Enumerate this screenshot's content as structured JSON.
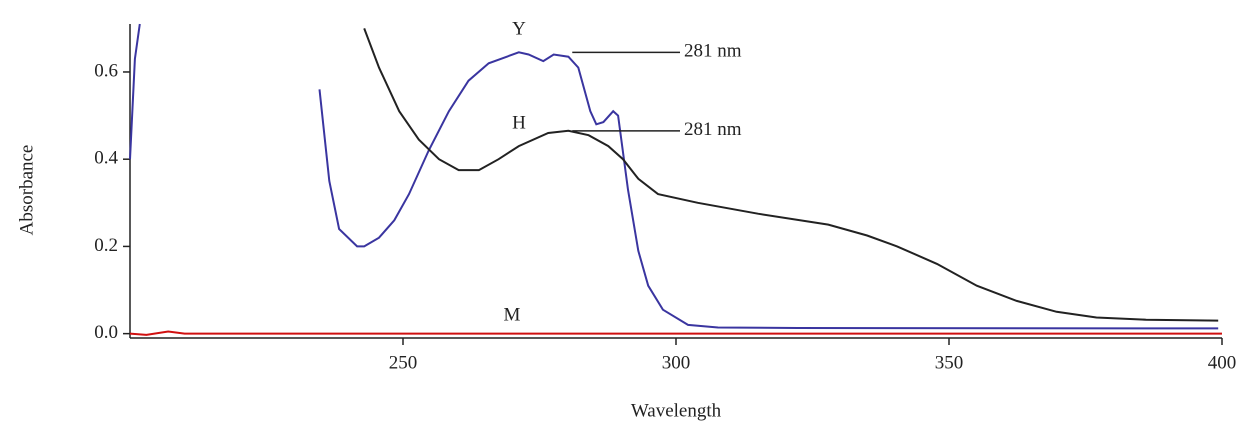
{
  "chart_data": {
    "type": "line",
    "x_label": "Wavelength",
    "y_label": "Absorbance",
    "xlim": [
      200,
      400
    ],
    "ylim": [
      -0.01,
      0.71
    ],
    "xticks": [
      250,
      300,
      350,
      400
    ],
    "yticks": [
      {
        "value": 0,
        "label": "0.0"
      },
      0.2,
      0.4,
      0.6
    ],
    "series": [
      {
        "name": "Y",
        "color": "#3a35a0",
        "x": [
          200,
          200.9,
          201.8,
          233.2,
          234.7,
          236.5,
          238.3,
          241.6,
          242.9,
          245.6,
          248.4,
          251.1,
          254.7,
          258.4,
          262,
          265.7,
          271.2,
          273,
          275.7,
          277.6,
          280.3,
          282.1,
          284.3,
          285.4,
          286.7,
          288.5,
          289.4,
          291.2,
          293.1,
          294.9,
          297.6,
          302.2,
          307.7,
          322.3,
          399.3
        ],
        "values": [
          0.4,
          0.63,
          0.71,
          null,
          0.56,
          0.35,
          0.24,
          0.2,
          0.2,
          0.22,
          0.26,
          0.32,
          0.42,
          0.51,
          0.58,
          0.62,
          0.645,
          0.64,
          0.625,
          0.64,
          0.635,
          0.61,
          0.51,
          0.48,
          0.485,
          0.51,
          0.5,
          0.33,
          0.19,
          0.11,
          0.055,
          0.02,
          0.014,
          0.013,
          0.012
        ]
      },
      {
        "name": "H",
        "color": "#222222",
        "x": [
          242.9,
          245.6,
          249.3,
          252.9,
          256.6,
          260.2,
          263.9,
          267.5,
          271.2,
          276.6,
          280.3,
          284,
          287.6,
          290.3,
          293.1,
          296.7,
          304,
          315,
          327.9,
          335,
          340.5,
          347.8,
          355.1,
          362.4,
          369.7,
          377,
          386.1,
          399.3
        ],
        "values": [
          0.7,
          0.61,
          0.51,
          0.445,
          0.4,
          0.375,
          0.375,
          0.4,
          0.43,
          0.46,
          0.465,
          0.455,
          0.43,
          0.4,
          0.355,
          0.32,
          0.3,
          0.275,
          0.25,
          0.225,
          0.2,
          0.16,
          0.11,
          0.075,
          0.05,
          0.037,
          0.032,
          0.03
        ]
      },
      {
        "name": "M",
        "color": "#d01010",
        "x": [
          200,
          203,
          207,
          210,
          400
        ],
        "values": [
          0,
          -0.003,
          0.005,
          0,
          0
        ]
      }
    ],
    "annotations": [
      {
        "text": "281 nm",
        "x": 281,
        "y": 0.645
      },
      {
        "text": "281 nm",
        "x": 281,
        "y": 0.465
      }
    ]
  }
}
